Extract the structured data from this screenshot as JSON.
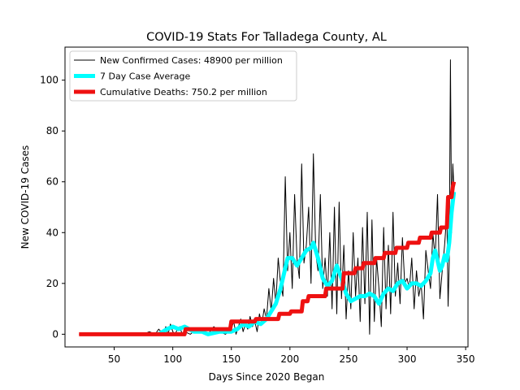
{
  "chart_data": {
    "type": "line",
    "title": "COVID-19 Stats For Talladega County, AL",
    "xlabel": "Days Since 2020 Began",
    "ylabel": "New COVID-19 Cases",
    "xlim": [
      8,
      352
    ],
    "ylim": [
      -5,
      113
    ],
    "xticks": [
      50,
      100,
      150,
      200,
      250,
      300,
      350
    ],
    "yticks": [
      0,
      20,
      40,
      60,
      80,
      100
    ],
    "grid": false,
    "legend_position": "top-left",
    "series": [
      {
        "name": "New Confirmed Cases: 48900 per million",
        "color": "#000000",
        "x": [
          20,
          40,
          60,
          75,
          80,
          85,
          88,
          90,
          92,
          94,
          96,
          98,
          100,
          102,
          104,
          106,
          108,
          110,
          115,
          120,
          125,
          130,
          135,
          140,
          145,
          150,
          152,
          154,
          156,
          158,
          160,
          162,
          164,
          166,
          168,
          170,
          172,
          174,
          176,
          178,
          180,
          182,
          184,
          186,
          188,
          190,
          192,
          194,
          196,
          198,
          200,
          202,
          204,
          206,
          208,
          210,
          212,
          214,
          216,
          218,
          220,
          222,
          224,
          226,
          228,
          230,
          232,
          234,
          236,
          238,
          240,
          242,
          244,
          246,
          248,
          250,
          252,
          254,
          256,
          258,
          260,
          262,
          264,
          266,
          268,
          270,
          272,
          274,
          276,
          278,
          280,
          282,
          284,
          286,
          288,
          290,
          292,
          294,
          296,
          298,
          300,
          302,
          304,
          306,
          308,
          310,
          312,
          314,
          316,
          318,
          320,
          322,
          324,
          326,
          328,
          330,
          332,
          334,
          335,
          336,
          337,
          338,
          339,
          340
        ],
        "values": [
          0,
          0,
          0,
          0,
          1,
          0,
          2,
          1,
          0,
          3,
          0,
          4,
          1,
          0,
          2,
          3,
          0,
          1,
          0,
          2,
          1,
          0,
          3,
          1,
          0,
          2,
          5,
          0,
          3,
          6,
          1,
          4,
          2,
          7,
          3,
          5,
          1,
          8,
          4,
          10,
          6,
          18,
          9,
          22,
          12,
          30,
          20,
          15,
          62,
          25,
          40,
          18,
          55,
          30,
          22,
          67,
          28,
          35,
          50,
          20,
          71,
          32,
          25,
          55,
          18,
          30,
          15,
          40,
          10,
          50,
          8,
          52,
          14,
          35,
          6,
          25,
          10,
          40,
          15,
          30,
          5,
          42,
          12,
          48,
          0,
          45,
          5,
          30,
          18,
          3,
          42,
          10,
          35,
          8,
          48,
          15,
          28,
          12,
          38,
          20,
          22,
          18,
          30,
          10,
          25,
          15,
          20,
          6,
          33,
          25,
          18,
          40,
          30,
          55,
          14,
          25,
          35,
          48,
          11,
          28,
          108,
          40,
          67,
          57
        ]
      },
      {
        "name": "7 Day Case Average",
        "color": "#00ffff",
        "x": [
          88,
          95,
          100,
          105,
          110,
          118,
          125,
          130,
          140,
          150,
          155,
          160,
          165,
          170,
          175,
          180,
          184,
          188,
          192,
          196,
          198,
          202,
          206,
          210,
          214,
          218,
          220,
          224,
          228,
          232,
          236,
          240,
          244,
          248,
          252,
          256,
          260,
          264,
          268,
          272,
          276,
          280,
          284,
          288,
          292,
          296,
          300,
          304,
          308,
          312,
          316,
          320,
          322,
          324,
          326,
          328,
          330,
          332,
          334,
          336,
          338,
          340
        ],
        "values": [
          0,
          2,
          3,
          2,
          3,
          1,
          1,
          0,
          1,
          1,
          2,
          4,
          3,
          5,
          4,
          6,
          9,
          12,
          18,
          26,
          30,
          30,
          27,
          30,
          33,
          34,
          36,
          30,
          22,
          19,
          21,
          27,
          22,
          16,
          13,
          14,
          15,
          15,
          16,
          15,
          12,
          16,
          18,
          17,
          20,
          21,
          18,
          20,
          20,
          19,
          21,
          24,
          30,
          33,
          29,
          25,
          27,
          31,
          29,
          36,
          48,
          56
        ]
      },
      {
        "name": "Cumulative Deaths: 750.2 per million",
        "color": "#ee1111",
        "x": [
          20,
          60,
          110,
          111,
          130,
          149,
          150,
          170,
          171,
          190,
          191,
          200,
          201,
          210,
          211,
          215,
          216,
          230,
          231,
          245,
          246,
          255,
          256,
          262,
          263,
          272,
          273,
          280,
          281,
          290,
          291,
          300,
          301,
          310,
          311,
          320,
          321,
          328,
          329,
          334,
          335,
          338,
          339,
          340
        ],
        "values": [
          0,
          0,
          0,
          2,
          2,
          2,
          5,
          5,
          6,
          6,
          8,
          8,
          9,
          9,
          13,
          13,
          15,
          15,
          18,
          18,
          24,
          24,
          26,
          26,
          28,
          28,
          30,
          30,
          32,
          32,
          34,
          34,
          36,
          36,
          38,
          38,
          40,
          40,
          42,
          42,
          54,
          54,
          58,
          60
        ]
      }
    ]
  }
}
